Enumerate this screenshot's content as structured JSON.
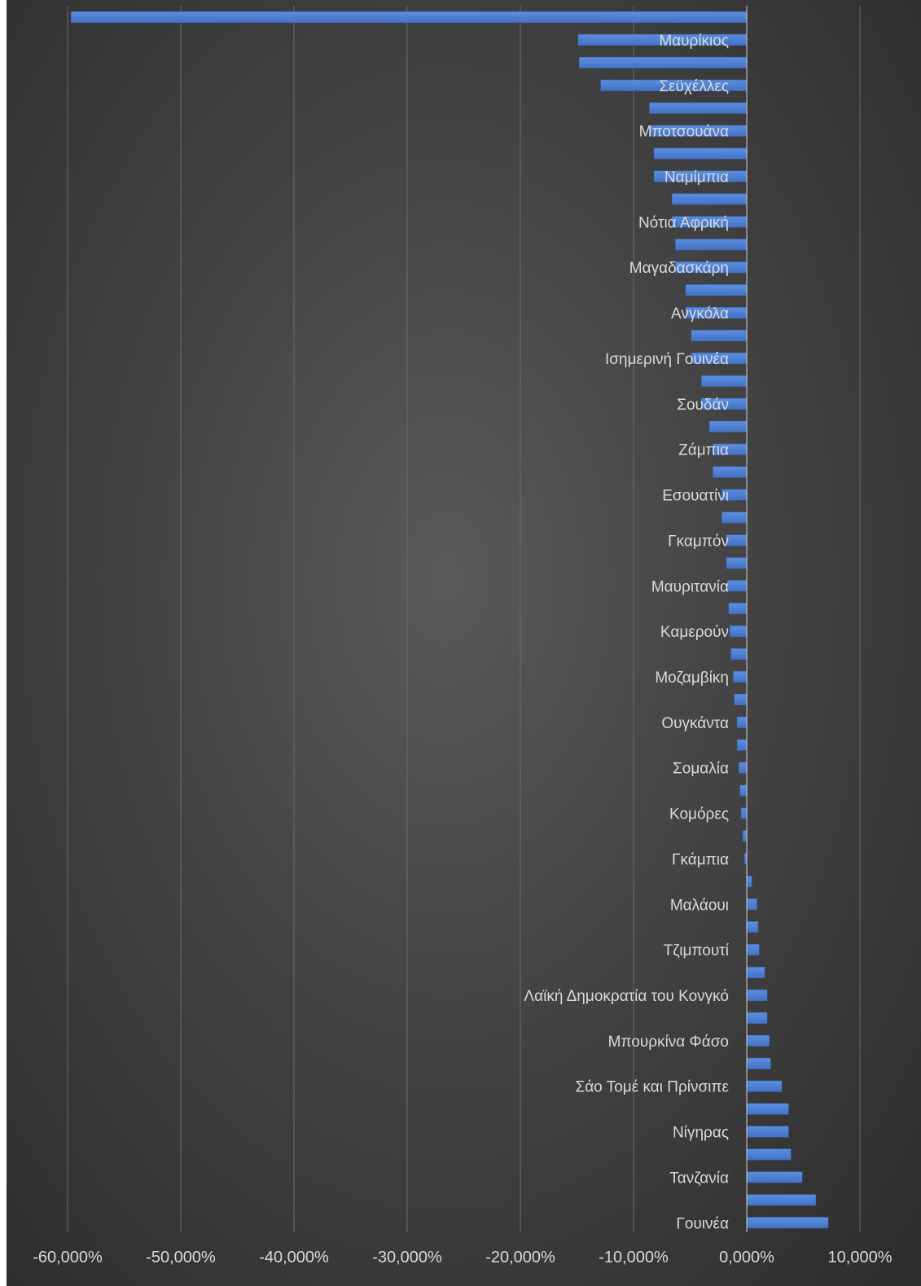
{
  "chart_data": {
    "type": "bar",
    "orientation": "horizontal",
    "categories": [
      "",
      "Μαυρίκιος",
      "",
      "Σεϋχέλλες",
      "",
      "Μποτσουάνα",
      "",
      "Ναμίμπια",
      "",
      "Νότια Αφρική",
      "",
      "Μαγαδασκάρη",
      "",
      "Ανγκόλα",
      "",
      "Ισημερινή Γουινέα",
      "",
      "Σουδάν",
      "",
      "Ζάμπια",
      "",
      "Εσουατίνι",
      "",
      "Γκαμπόν",
      "",
      "Μαυριτανία",
      "",
      "Καμερούν",
      "",
      "Μοζαμβίκη",
      "",
      "Ουγκάντα",
      "",
      "Σομαλία",
      "",
      "Κομόρες",
      "",
      "Γκάμπια",
      "",
      "Μαλάουι",
      "",
      "Τζιμπουτί",
      "",
      "Λαϊκή Δημοκρατία του Κονγκό",
      "",
      "Μπουρκίνα Φάσο",
      "",
      "Σάο Τομέ και Πρίνσιπε",
      "",
      "Νίγηρας",
      "",
      "Τανζανία",
      "",
      "Γουινέα"
    ],
    "values": [
      -59.7,
      -14.9,
      -14.8,
      -12.9,
      -8.6,
      -8.6,
      -8.2,
      -8.2,
      -6.6,
      -6.6,
      -6.3,
      -6.3,
      -5.4,
      -5.4,
      -4.9,
      -4.9,
      -4.0,
      -4.0,
      -3.3,
      -3.0,
      -3.0,
      -2.2,
      -2.2,
      -1.8,
      -1.8,
      -1.7,
      -1.6,
      -1.5,
      -1.4,
      -1.2,
      -1.1,
      -0.85,
      -0.85,
      -0.7,
      -0.6,
      -0.5,
      -0.35,
      -0.2,
      0.45,
      0.9,
      1.0,
      1.1,
      1.6,
      1.8,
      1.8,
      2.0,
      2.1,
      3.1,
      3.7,
      3.7,
      3.9,
      4.9,
      6.1,
      7.2
    ],
    "xlim": [
      -60,
      10
    ],
    "xticks": [
      "-60,000%",
      "-50,000%",
      "-40,000%",
      "-30,000%",
      "-20,000%",
      "-10,000%",
      "0,000%",
      "10,000%"
    ],
    "xtick_values": [
      -60,
      -50,
      -40,
      -30,
      -20,
      -10,
      0,
      10
    ],
    "title": "",
    "xlabel": "",
    "ylabel": "",
    "grid": "vertical",
    "legend": "none",
    "bar_color": "#4472c4",
    "bar_highlight_color": "#5b8ee0",
    "background_color": "#404040",
    "gridline_color": "#6b6b6b",
    "text_color": "#d9d9d9"
  }
}
